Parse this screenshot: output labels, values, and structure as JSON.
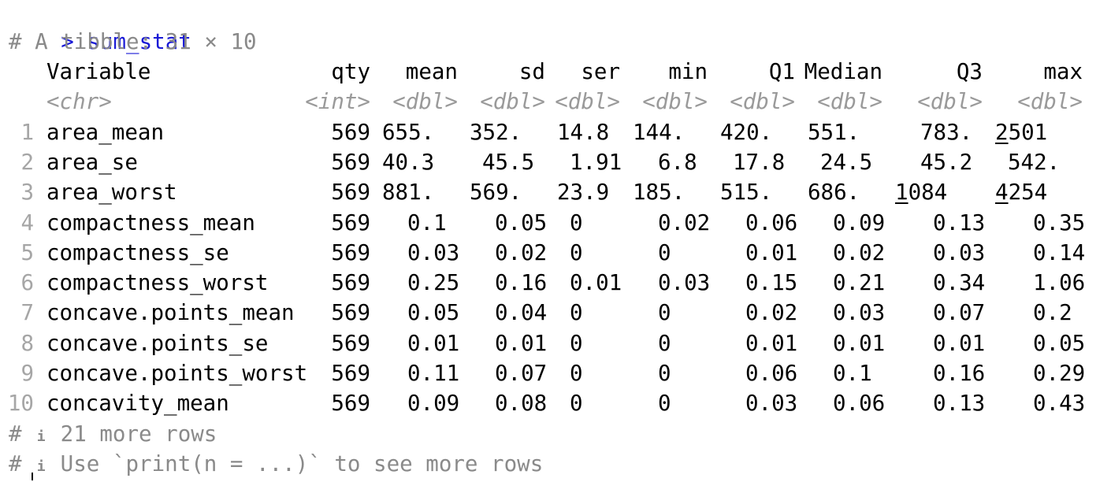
{
  "console": {
    "prompt": "> ",
    "command": "sum_stat",
    "header_comment": "# A tibble: 31 × 10",
    "footer": {
      "more_rows_prefix": "# ",
      "info_glyph": "i",
      "more_rows_text": " 21 more rows",
      "use_print_prefix": "# ",
      "use_print_text": " Use `print(n = ...)` to see more rows"
    },
    "colors": {
      "command": "#1a1ad6",
      "comment": "#8a8a8a",
      "row_index": "#a6a6a6",
      "type_label": "#9a9a9a"
    }
  },
  "table": {
    "columns": [
      "Variable",
      "qty",
      "mean",
      "sd",
      "ser",
      "min",
      "Q1",
      "Median",
      "Q3",
      "max"
    ],
    "types": [
      "<chr>",
      "<int>",
      "<dbl>",
      "<dbl>",
      "<dbl>",
      "<dbl>",
      "<dbl>",
      "<dbl>",
      "<dbl>",
      "<dbl>"
    ],
    "rows": [
      {
        "n": "1",
        "cells": [
          "area_mean",
          "569",
          "655.",
          "352.",
          "14.8",
          "144.",
          "420.",
          "551.",
          "783.",
          "2501"
        ]
      },
      {
        "n": "2",
        "cells": [
          "area_se",
          "569",
          "40.3",
          "45.5",
          "1.91",
          "6.8",
          "17.8",
          "24.5",
          "45.2",
          "542."
        ]
      },
      {
        "n": "3",
        "cells": [
          "area_worst",
          "569",
          "881.",
          "569.",
          "23.9",
          "185.",
          "515.",
          "686.",
          "1084",
          "4254"
        ]
      },
      {
        "n": "4",
        "cells": [
          "compactness_mean",
          "569",
          "0.1",
          "0.05",
          "0",
          "0.02",
          "0.06",
          "0.09",
          "0.13",
          "0.35"
        ]
      },
      {
        "n": "5",
        "cells": [
          "compactness_se",
          "569",
          "0.03",
          "0.02",
          "0",
          "0",
          "0.01",
          "0.02",
          "0.03",
          "0.14"
        ]
      },
      {
        "n": "6",
        "cells": [
          "compactness_worst",
          "569",
          "0.25",
          "0.16",
          "0.01",
          "0.03",
          "0.15",
          "0.21",
          "0.34",
          "1.06"
        ]
      },
      {
        "n": "7",
        "cells": [
          "concave.points_mean",
          "569",
          "0.05",
          "0.04",
          "0",
          "0",
          "0.02",
          "0.03",
          "0.07",
          "0.2"
        ]
      },
      {
        "n": "8",
        "cells": [
          "concave.points_se",
          "569",
          "0.01",
          "0.01",
          "0",
          "0",
          "0.01",
          "0.01",
          "0.01",
          "0.05"
        ]
      },
      {
        "n": "9",
        "cells": [
          "concave.points_worst",
          "569",
          "0.11",
          "0.07",
          "0",
          "0",
          "0.06",
          "0.1",
          "0.16",
          "0.29"
        ]
      },
      {
        "n": "10",
        "cells": [
          "concavity_mean",
          "569",
          "0.09",
          "0.08",
          "0",
          "0",
          "0.03",
          "0.06",
          "0.13",
          "0.43"
        ]
      }
    ]
  }
}
